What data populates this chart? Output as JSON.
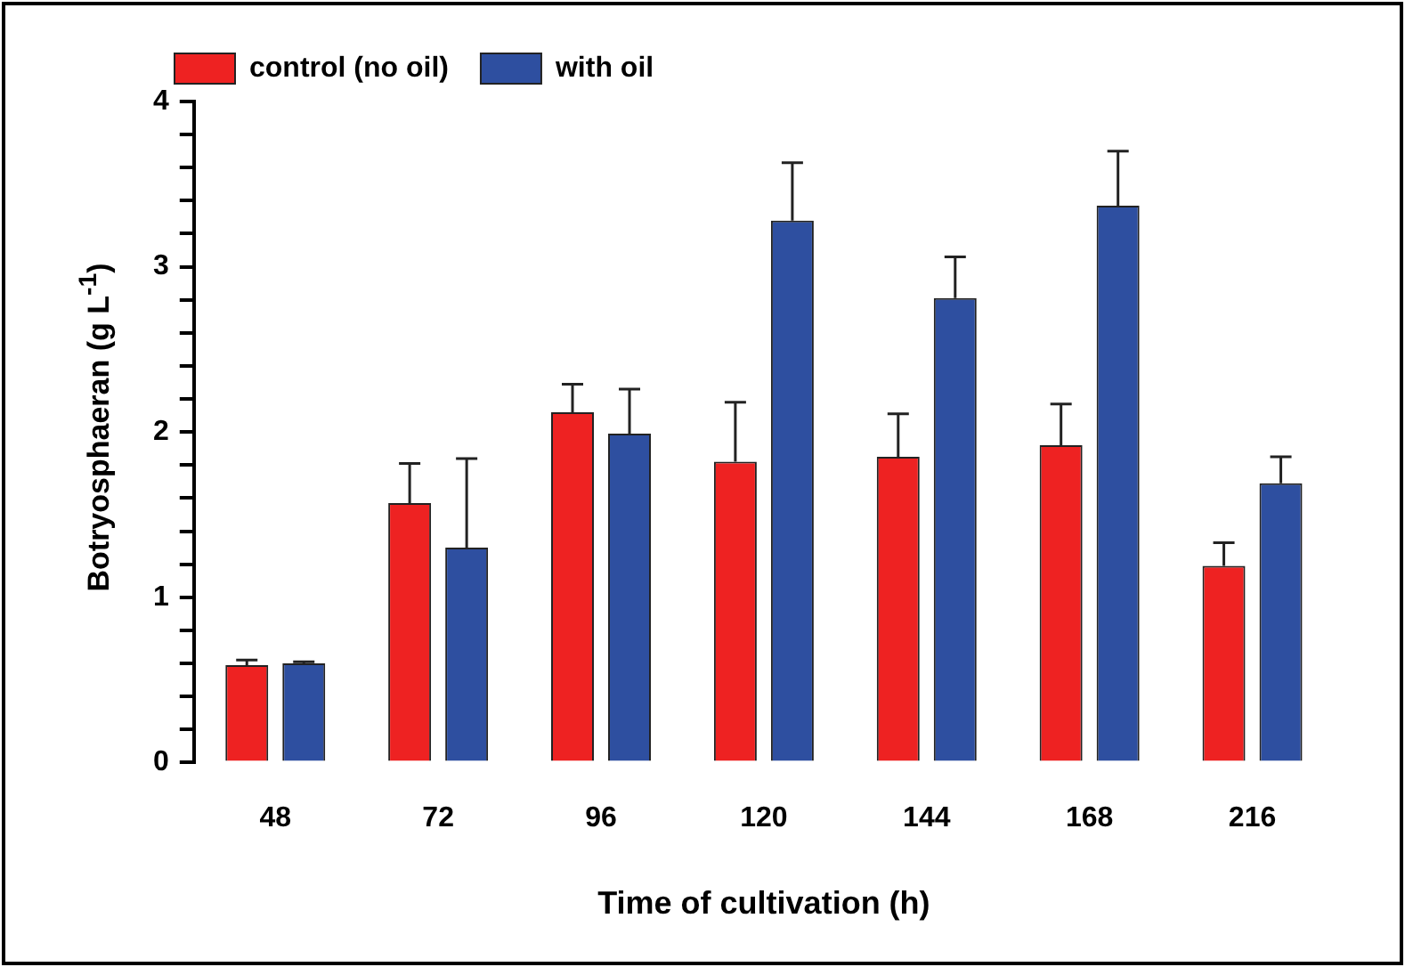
{
  "chart_data": {
    "type": "bar",
    "xlabel": "Time of cultivation (h)",
    "ylabel": "Botryosphaeran (g L$^{-1}$)",
    "categories": [
      "48",
      "72",
      "96",
      "120",
      "144",
      "168",
      "216"
    ],
    "series": [
      {
        "name": "control (no oil)",
        "color": "#ee2222",
        "values": [
          0.59,
          1.57,
          2.12,
          1.82,
          1.85,
          1.92,
          1.19
        ],
        "errors": [
          [
            0.59,
            0.62
          ],
          [
            1.57,
            1.81
          ],
          [
            2.12,
            2.29
          ],
          [
            1.82,
            2.18
          ],
          [
            1.85,
            2.11
          ],
          [
            1.92,
            2.17
          ],
          [
            1.19,
            1.33
          ]
        ]
      },
      {
        "name": "with oil",
        "color": "#2e4fa0",
        "values": [
          0.6,
          1.3,
          1.99,
          3.28,
          2.81,
          3.37,
          1.69
        ],
        "errors": [
          [
            0.6,
            0.61
          ],
          [
            1.3,
            1.84
          ],
          [
            1.99,
            2.26
          ],
          [
            3.28,
            3.63
          ],
          [
            2.81,
            3.06
          ],
          [
            3.37,
            3.7
          ],
          [
            1.69,
            1.85
          ]
        ]
      }
    ],
    "ylim": [
      0,
      4
    ],
    "yticks": [
      0,
      {
        "value": 0.2,
        "label": null
      },
      {
        "value": 0.4,
        "label": null
      },
      {
        "value": 0.6,
        "label": null
      },
      {
        "value": 0.8,
        "label": null
      },
      1,
      {
        "value": 1.2,
        "label": null
      },
      {
        "value": 1.4,
        "label": null
      },
      {
        "value": 1.6,
        "label": null
      },
      {
        "value": 1.8,
        "label": null
      },
      2,
      {
        "value": 2.2,
        "label": null
      },
      {
        "value": 2.4,
        "label": null
      },
      {
        "value": 2.6,
        "label": null
      },
      {
        "value": 2.8,
        "label": null
      },
      3,
      {
        "value": 3.2,
        "label": null
      },
      {
        "value": 3.4,
        "label": null
      },
      {
        "value": 3.6,
        "label": null
      },
      {
        "value": 3.8,
        "label": null
      },
      4
    ],
    "legend": "top left"
  }
}
